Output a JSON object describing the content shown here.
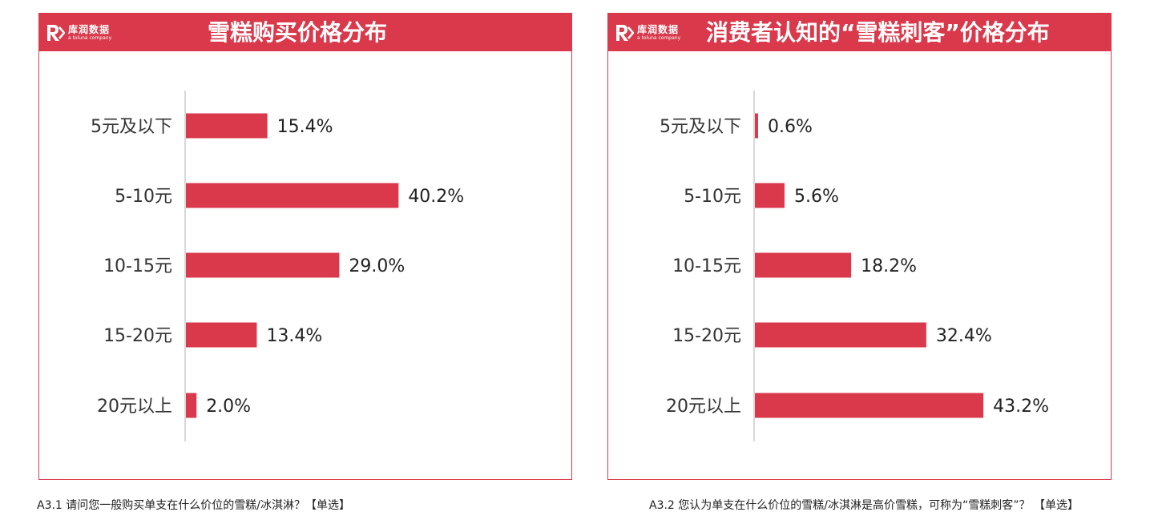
{
  "brand": {
    "name_cn": "库润数据",
    "tagline": "a toluna company"
  },
  "colors": {
    "accent": "#d9394b",
    "axis": "#cccccc"
  },
  "chart_data": [
    {
      "type": "bar",
      "orientation": "horizontal",
      "title": "雪糕购买价格分布",
      "categories": [
        "5元及以下",
        "5-10元",
        "10-15元",
        "15-20元",
        "20元以上"
      ],
      "values": [
        15.4,
        40.2,
        29.0,
        13.4,
        2.0
      ],
      "value_labels": [
        "15.4%",
        "40.2%",
        "29.0%",
        "13.4%",
        "2.0%"
      ],
      "xlim": [
        0,
        100
      ],
      "grid": false,
      "legend": "none",
      "caption": "A3.1 请问您一般购买单支在什么价位的雪糕/冰淇淋？【单选】"
    },
    {
      "type": "bar",
      "orientation": "horizontal",
      "title": "消费者认知的“雪糕刺客”价格分布",
      "categories": [
        "5元及以下",
        "5-10元",
        "10-15元",
        "15-20元",
        "20元以上"
      ],
      "values": [
        0.6,
        5.6,
        18.2,
        32.4,
        43.2
      ],
      "value_labels": [
        "0.6%",
        "5.6%",
        "18.2%",
        "32.4%",
        "43.2%"
      ],
      "xlim": [
        0,
        100
      ],
      "grid": false,
      "legend": "none",
      "caption": "A3.2 您认为单支在什么价位的雪糕/冰淇淋是高价雪糕，可称为“雪糕刺客”？ 【单选】"
    }
  ]
}
